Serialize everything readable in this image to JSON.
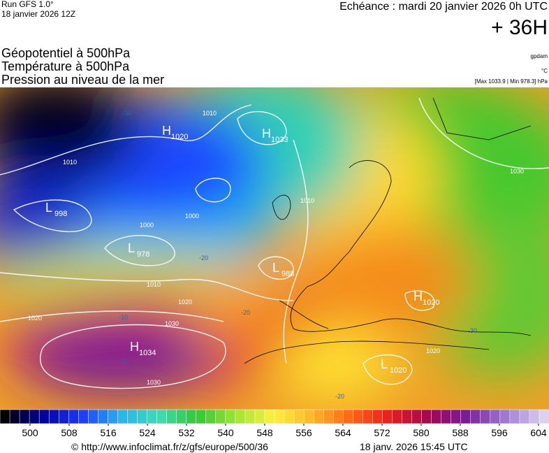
{
  "header": {
    "run": "Run GFS 1.0°",
    "run_date": "18 janvier 2026 12Z",
    "valid": "Echéance : mardi 20 janvier 2026 0h UTC",
    "lead": "+ 36H"
  },
  "titles": [
    "Géopotentiel à 500hPa",
    "Température à 500hPa",
    "Pression au niveau de la mer"
  ],
  "units": {
    "geopotential": "gpdam",
    "temperature": "°C",
    "pressure": "[Max 1033.9 | Min 978.3] hPa"
  },
  "pressure_centers": [
    {
      "letter": "H",
      "value": 1020
    },
    {
      "letter": "H",
      "value": 1033
    },
    {
      "letter": "L",
      "value": 998
    },
    {
      "letter": "L",
      "value": 978
    },
    {
      "letter": "L",
      "value": 988
    },
    {
      "letter": "H",
      "value": 1034
    },
    {
      "letter": "H",
      "value": 1020
    },
    {
      "letter": "L",
      "value": 1020
    }
  ],
  "isobar_labels": [
    1010,
    1010,
    1000,
    1000,
    1010,
    1020,
    1020,
    1030,
    1030,
    1030,
    1010,
    1020
  ],
  "temperature_labels": [
    -20,
    -30,
    -10,
    -10,
    -20,
    -20,
    -30
  ],
  "colorbar": {
    "ticks": [
      500,
      508,
      516,
      524,
      532,
      540,
      548,
      556,
      564,
      572,
      580,
      588,
      596,
      604
    ],
    "stops": [
      "#000000",
      "#0000a0",
      "#1e3cff",
      "#28b4f0",
      "#3cdcb4",
      "#32c832",
      "#a0e632",
      "#fff03c",
      "#ffb428",
      "#ff6414",
      "#e61e1e",
      "#a00a50",
      "#781e96",
      "#a07ad2",
      "#dcd2f0"
    ]
  },
  "footer": {
    "source": "© http://www.infoclimat.fr/z/gfs/europe/500/36",
    "timestamp": "18 janv. 2026 15:45 UTC"
  }
}
